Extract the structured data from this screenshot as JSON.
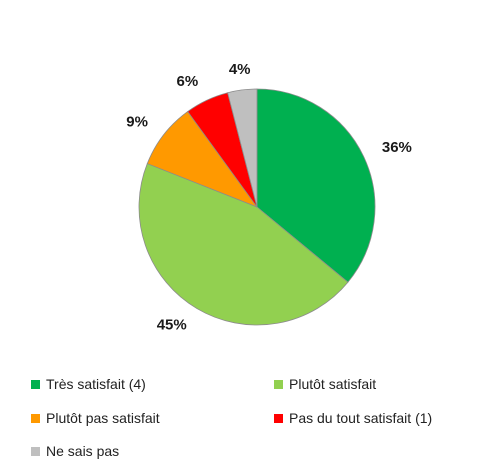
{
  "chart_data": {
    "type": "pie",
    "title": "",
    "categories": [
      "Très satisfait (4)",
      "Plutôt satisfait",
      "Plutôt pas satisfait",
      "Pas du tout satisfait (1)",
      "Ne sais pas"
    ],
    "values": [
      36,
      45,
      9,
      6,
      4
    ],
    "labels": [
      "36%",
      "45%",
      "9%",
      "6%",
      "4%"
    ],
    "colors": [
      "#00b050",
      "#92d050",
      "#ff9900",
      "#ff0000",
      "#bfbfbf"
    ],
    "start_angle_deg": 0,
    "direction": "clockwise",
    "legend_position": "bottom",
    "slice_border_color": "#8c8c8c"
  }
}
